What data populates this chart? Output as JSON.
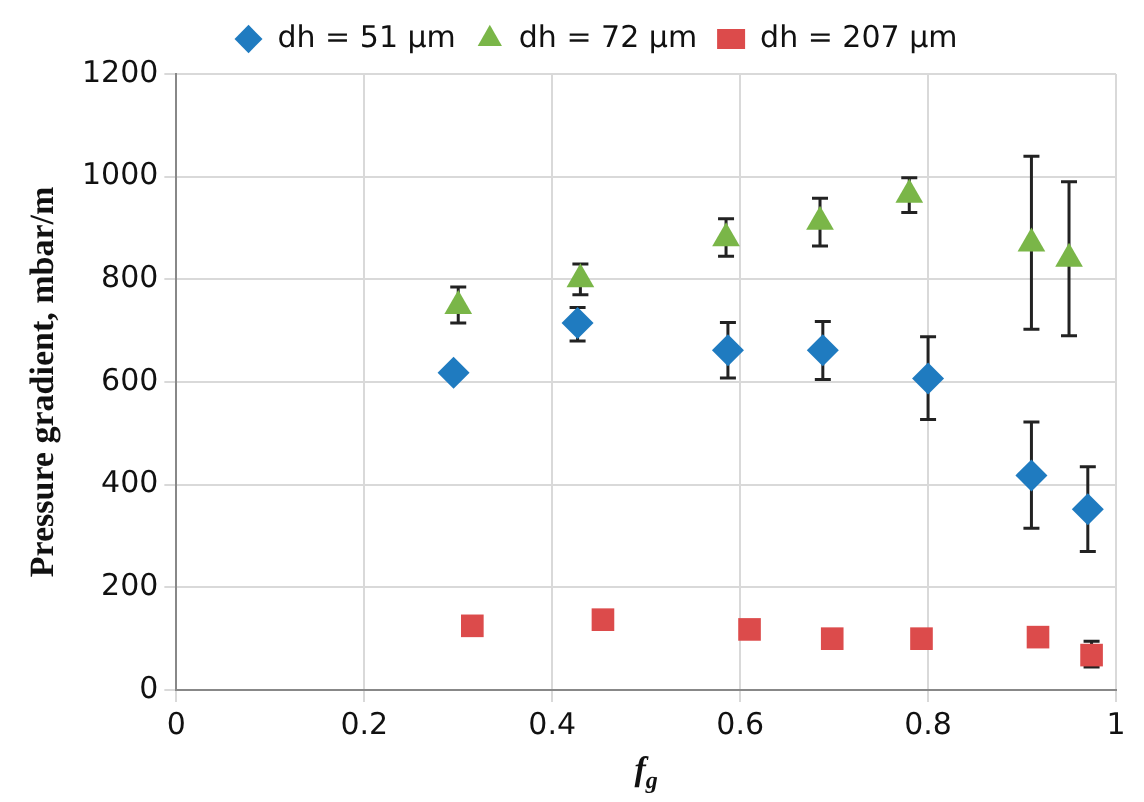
{
  "chart_data": {
    "type": "scatter",
    "xlabel": "f$_{g}$",
    "ylabel": "Pressure gradient, mbar/m",
    "xlim": [
      0,
      1
    ],
    "xticks": [
      0,
      0.2,
      0.4,
      0.6,
      0.8,
      1
    ],
    "ylim": [
      0,
      1200
    ],
    "yticks": [
      0,
      200,
      400,
      600,
      800,
      1000,
      1200
    ],
    "grid": true,
    "legend": "top",
    "series": [
      {
        "name": "dh = 51 µm",
        "color": "#1f7bc0",
        "marker": "diamond",
        "x": [
          0.295,
          0.427,
          0.587,
          0.688,
          0.8,
          0.91,
          0.97
        ],
        "values": [
          618,
          715,
          662,
          662,
          607,
          418,
          352
        ],
        "errors": [
          null,
          [
            680,
            745
          ],
          [
            608,
            716
          ],
          [
            605,
            718
          ],
          [
            527,
            688
          ],
          [
            315,
            522
          ],
          [
            270,
            435
          ]
        ]
      },
      {
        "name": "dh = 72 µm",
        "color": "#7ab648",
        "marker": "triangle",
        "x": [
          0.3,
          0.43,
          0.585,
          0.685,
          0.78,
          0.91,
          0.95
        ],
        "values": [
          748,
          800,
          880,
          912,
          965,
          870,
          840
        ],
        "errors": [
          [
            715,
            785
          ],
          [
            770,
            830
          ],
          [
            845,
            918
          ],
          [
            865,
            958
          ],
          [
            930,
            998
          ],
          [
            703,
            1040
          ],
          [
            690,
            990
          ]
        ]
      },
      {
        "name": "dh = 207 µm",
        "color": "#dc4b4b",
        "marker": "square",
        "x": [
          0.315,
          0.454,
          0.61,
          0.698,
          0.793,
          0.917,
          0.974
        ],
        "values": [
          125,
          137,
          118,
          100,
          100,
          103,
          68
        ],
        "errors": [
          null,
          null,
          null,
          null,
          null,
          null,
          [
            45,
            95
          ]
        ]
      }
    ]
  }
}
